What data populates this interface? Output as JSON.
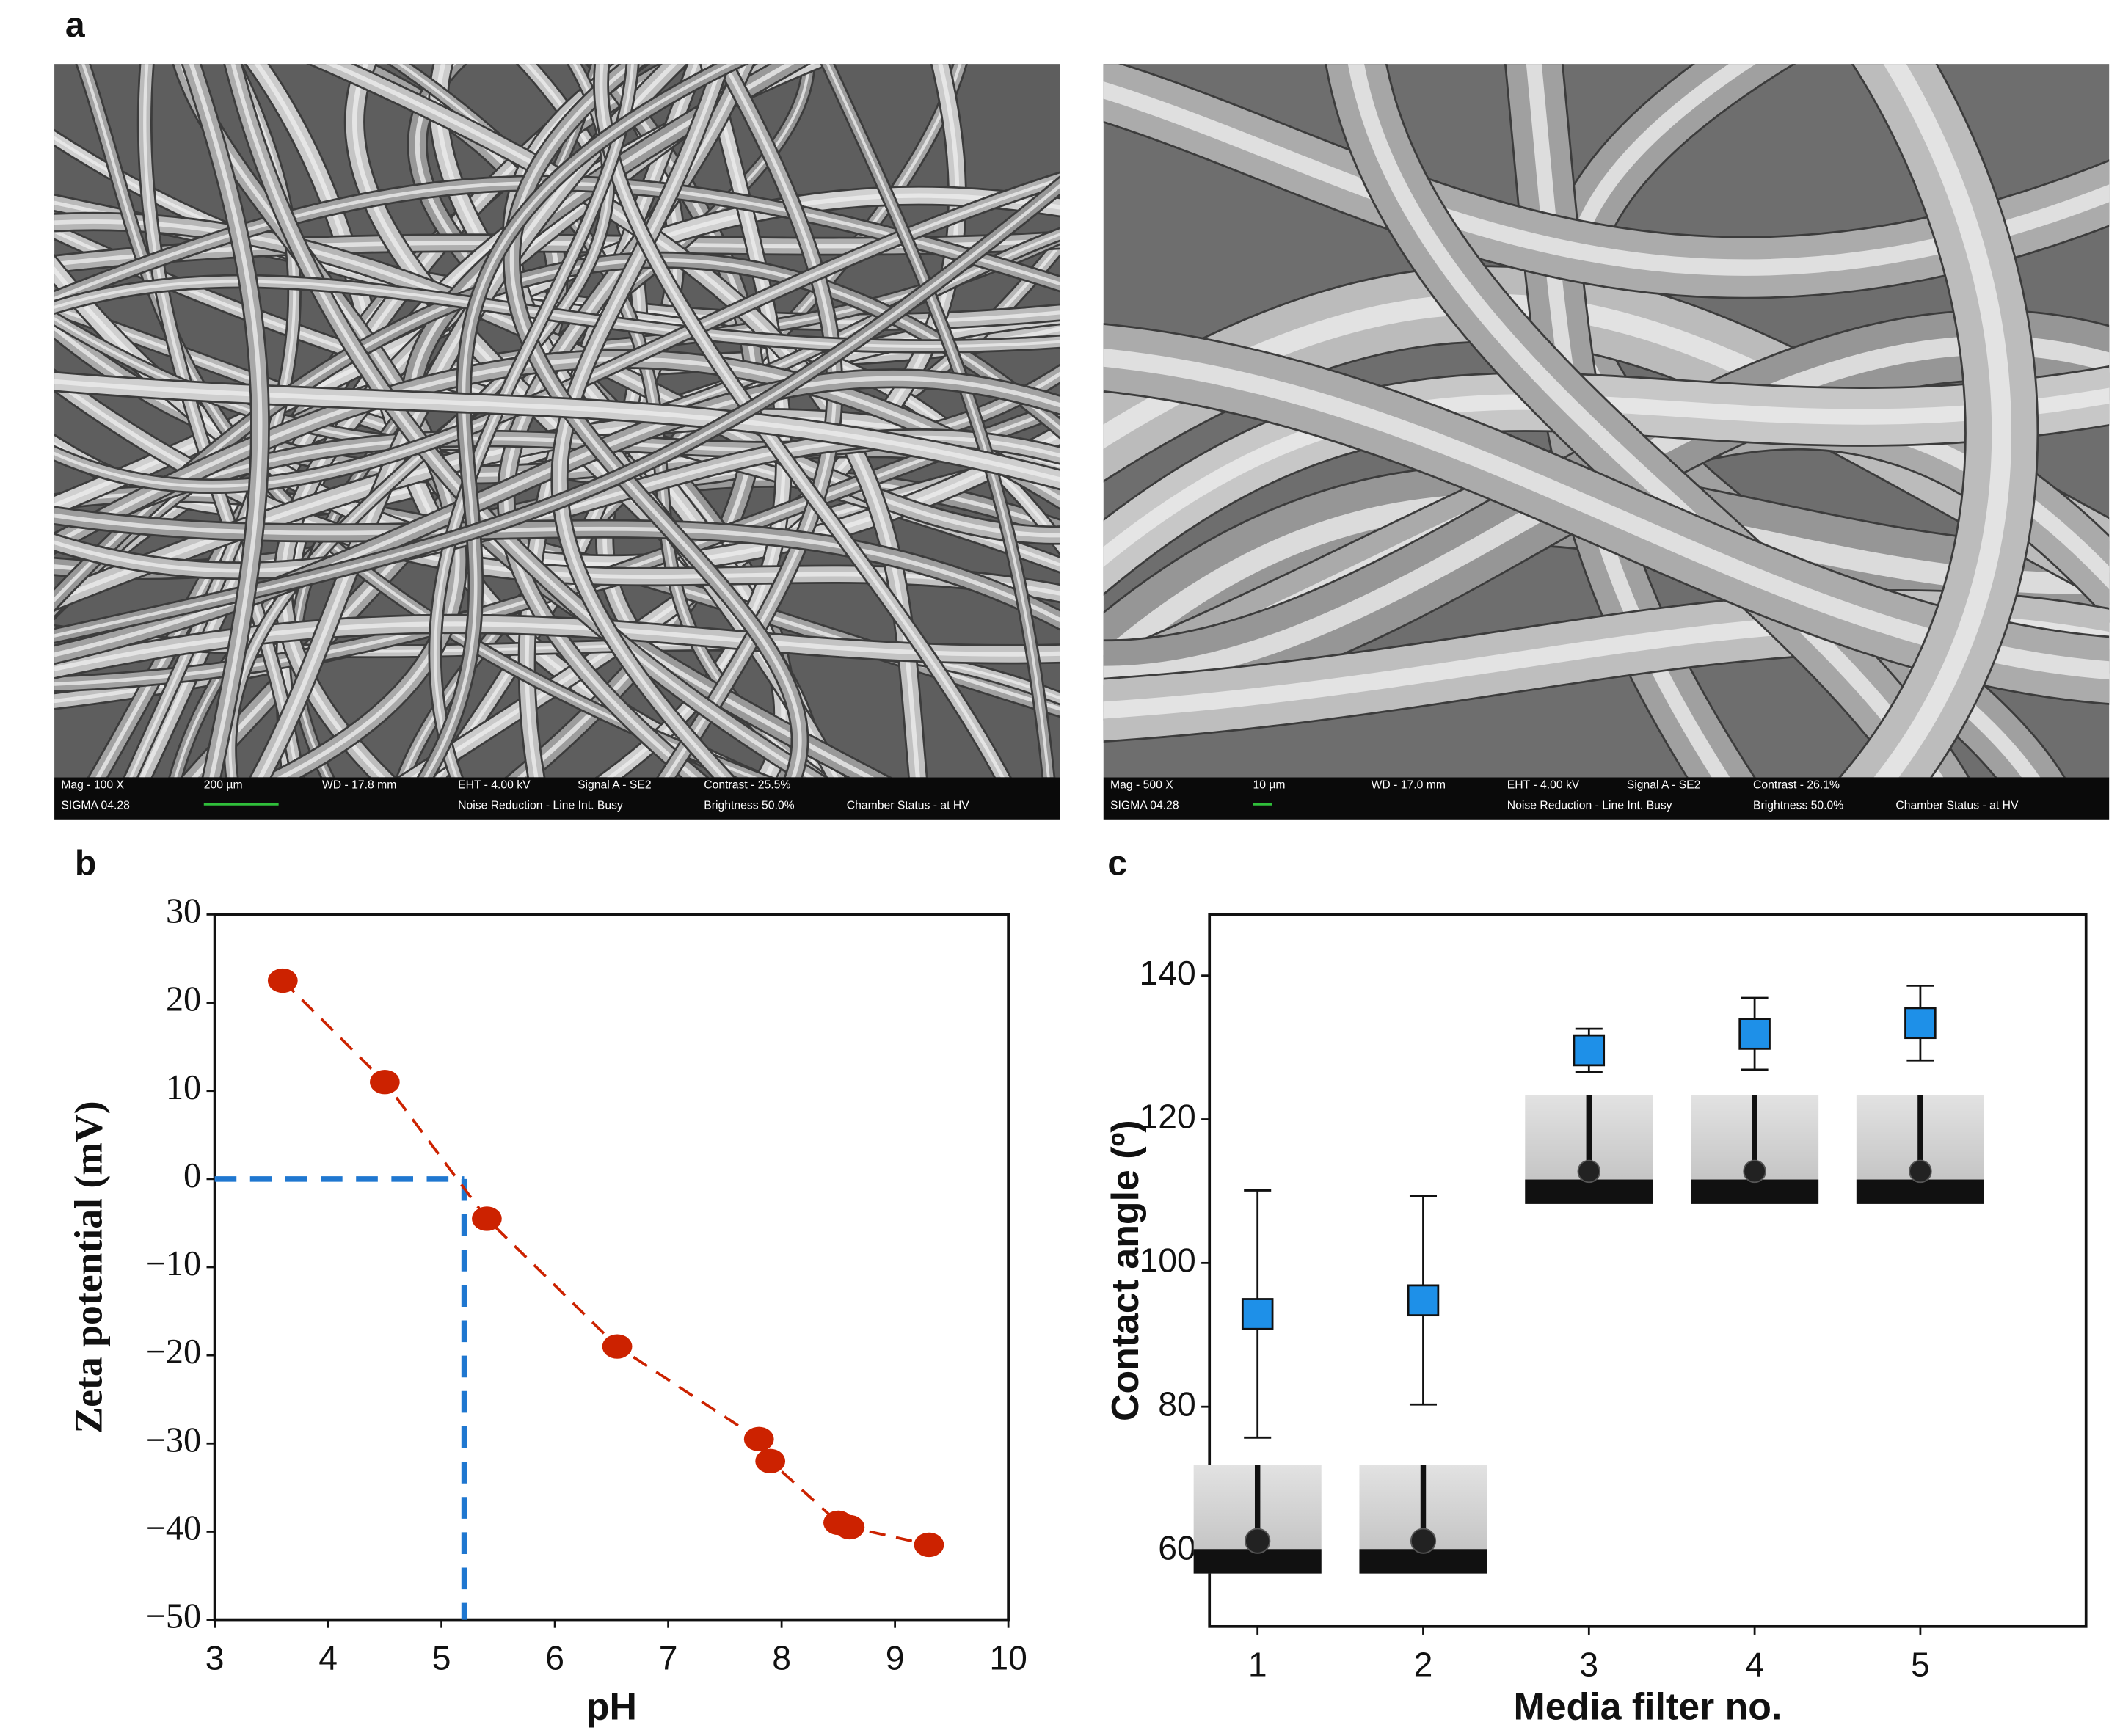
{
  "panel_labels": [
    "a",
    "b",
    "c"
  ],
  "sem_images": [
    {
      "texts": [
        "Mag -   100 X",
        "SIGMA 04.28",
        "200 µm",
        "WD - 17.8 mm",
        "EHT - 4.00 kV",
        "Signal A - SE2",
        "Noise Reduction - Line Int. Busy",
        "Contrast - 25.5%",
        "Brightness 50.0%",
        "Chamber Status - at HV"
      ]
    },
    {
      "texts": [
        "Mag -   500 X",
        "SIGMA 04.28",
        "10 µm",
        "WD - 17.0 mm",
        "EHT - 4.00 kV",
        "Signal A - SE2",
        "Noise Reduction - Line Int. Busy",
        "Contrast - 26.1%",
        "Brightness 50.0%",
        "Chamber Status - at HV"
      ]
    }
  ],
  "chart_data": [
    {
      "type": "line",
      "x_label": "pH",
      "y_label": "Zeta potential (mV)",
      "x": [
        3.6,
        4.5,
        5.4,
        6.55,
        7.8,
        7.9,
        8.5,
        8.6,
        9.3
      ],
      "values": [
        22.5,
        11,
        -4.5,
        -19,
        -29.5,
        -32,
        -39,
        -39.5,
        -41.5
      ],
      "color": "#cc2200",
      "xlim": [
        3,
        10
      ],
      "xticks": [
        3,
        4,
        5,
        6,
        7,
        8,
        9,
        10
      ],
      "ylim": [
        -50,
        30
      ],
      "yticks": [
        30,
        20,
        10,
        0,
        {
          "value": -10,
          "label": "−10"
        },
        {
          "value": -20,
          "label": "−20"
        },
        {
          "value": -30,
          "label": "−30"
        },
        {
          "value": -40,
          "label": "−40"
        },
        {
          "value": -50,
          "label": "−50"
        }
      ],
      "reference": {
        "x": 5.2,
        "y": 0,
        "color": "#1f77d0"
      }
    },
    {
      "type": "errorbar",
      "x_label": "Media filter no.",
      "y_label": "Contact angle (º)",
      "x": [
        1,
        2,
        3,
        4,
        5
      ],
      "values": [
        92.9,
        94.8,
        129.6,
        131.9,
        133.4
      ],
      "errors": [
        17.2,
        14.5,
        3,
        5,
        5.2
      ],
      "color": "#1e90e8",
      "xlim": [
        0.71,
        6.0
      ],
      "xticks": [
        1,
        2,
        3,
        4,
        5
      ],
      "ylim": [
        49.4,
        148.5
      ],
      "yticks": [
        60,
        80,
        100,
        120,
        140
      ]
    }
  ]
}
